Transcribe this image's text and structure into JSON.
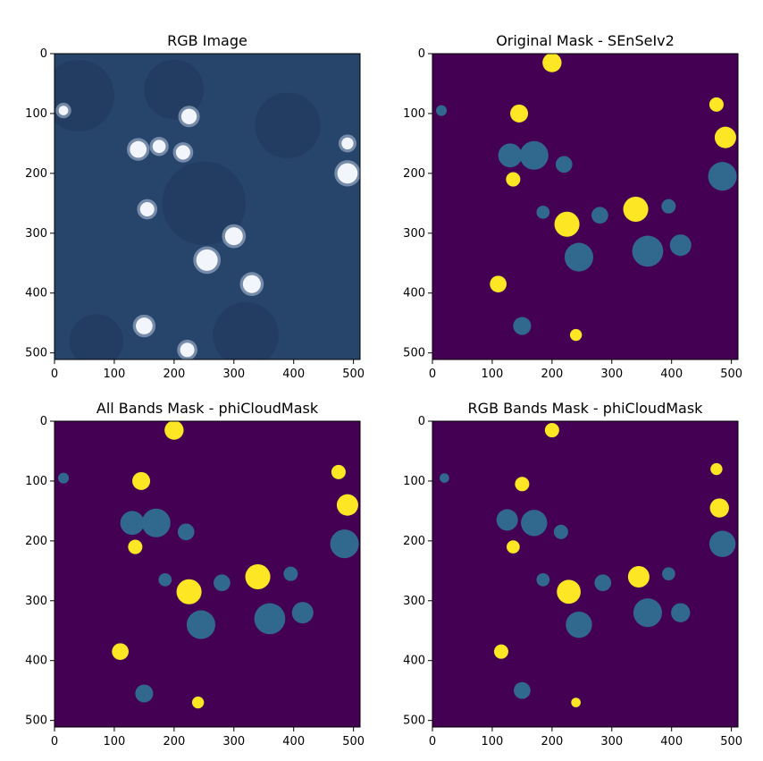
{
  "chart_data": [
    {
      "type": "heatmap",
      "title": "RGB Image",
      "image_kind": "rgb",
      "xlim": [
        0,
        511
      ],
      "ylim": [
        0,
        511
      ],
      "xticks": [
        0,
        100,
        200,
        300,
        400,
        500
      ],
      "yticks": [
        0,
        100,
        200,
        300,
        400,
        500
      ],
      "colors": {
        "background": "#27446a",
        "dark_patch": "#1c3557",
        "cloud": "#f2f5fb",
        "cloud_edge": "#b7c6dc"
      },
      "clouds": [
        [
          140,
          160,
          14
        ],
        [
          175,
          155,
          11
        ],
        [
          225,
          105,
          13
        ],
        [
          215,
          165,
          12
        ],
        [
          255,
          345,
          18
        ],
        [
          300,
          305,
          15
        ],
        [
          330,
          385,
          15
        ],
        [
          15,
          95,
          8
        ],
        [
          490,
          200,
          17
        ],
        [
          490,
          150,
          10
        ],
        [
          155,
          260,
          12
        ],
        [
          150,
          455,
          14
        ],
        [
          222,
          495,
          12
        ]
      ]
    },
    {
      "type": "heatmap",
      "title": "Original Mask - SEnSeIv2",
      "image_kind": "mask",
      "xlim": [
        0,
        511
      ],
      "ylim": [
        0,
        511
      ],
      "xticks": [
        0,
        100,
        200,
        300,
        400,
        500
      ],
      "yticks": [
        0,
        100,
        200,
        300,
        400,
        500
      ],
      "colors": {
        "class_0": "#440154",
        "class_1": "#31688e",
        "class_2": "#fde725"
      },
      "blue_regions": [
        [
          15,
          95,
          9
        ],
        [
          130,
          170,
          20
        ],
        [
          170,
          170,
          24
        ],
        [
          220,
          185,
          14
        ],
        [
          245,
          340,
          24
        ],
        [
          360,
          330,
          26
        ],
        [
          415,
          320,
          18
        ],
        [
          150,
          455,
          15
        ],
        [
          185,
          265,
          11
        ],
        [
          485,
          205,
          24
        ],
        [
          280,
          270,
          14
        ],
        [
          395,
          255,
          12
        ]
      ],
      "yellow_regions": [
        [
          200,
          15,
          16
        ],
        [
          145,
          100,
          15
        ],
        [
          110,
          385,
          14
        ],
        [
          225,
          285,
          21
        ],
        [
          340,
          260,
          21
        ],
        [
          490,
          140,
          18
        ],
        [
          475,
          85,
          12
        ],
        [
          240,
          470,
          10
        ],
        [
          135,
          210,
          12
        ]
      ]
    },
    {
      "type": "heatmap",
      "title": "All Bands Mask - phiCloudMask",
      "image_kind": "mask",
      "xlim": [
        0,
        511
      ],
      "ylim": [
        0,
        511
      ],
      "xticks": [
        0,
        100,
        200,
        300,
        400,
        500
      ],
      "yticks": [
        0,
        100,
        200,
        300,
        400,
        500
      ],
      "colors": {
        "class_0": "#440154",
        "class_1": "#31688e",
        "class_2": "#fde725"
      },
      "blue_regions": [
        [
          15,
          95,
          9
        ],
        [
          130,
          170,
          20
        ],
        [
          170,
          170,
          24
        ],
        [
          220,
          185,
          14
        ],
        [
          245,
          340,
          24
        ],
        [
          360,
          330,
          26
        ],
        [
          415,
          320,
          18
        ],
        [
          150,
          455,
          15
        ],
        [
          185,
          265,
          11
        ],
        [
          485,
          205,
          24
        ],
        [
          280,
          270,
          14
        ],
        [
          395,
          255,
          12
        ]
      ],
      "yellow_regions": [
        [
          200,
          15,
          16
        ],
        [
          145,
          100,
          15
        ],
        [
          110,
          385,
          14
        ],
        [
          225,
          285,
          21
        ],
        [
          340,
          260,
          21
        ],
        [
          490,
          140,
          18
        ],
        [
          475,
          85,
          12
        ],
        [
          240,
          470,
          10
        ],
        [
          135,
          210,
          12
        ]
      ]
    },
    {
      "type": "heatmap",
      "title": "RGB Bands Mask - phiCloudMask",
      "image_kind": "mask",
      "xlim": [
        0,
        511
      ],
      "ylim": [
        0,
        511
      ],
      "xticks": [
        0,
        100,
        200,
        300,
        400,
        500
      ],
      "yticks": [
        0,
        100,
        200,
        300,
        400,
        500
      ],
      "colors": {
        "class_0": "#440154",
        "class_1": "#31688e",
        "class_2": "#fde725"
      },
      "blue_regions": [
        [
          20,
          95,
          8
        ],
        [
          125,
          165,
          18
        ],
        [
          170,
          170,
          22
        ],
        [
          215,
          185,
          12
        ],
        [
          245,
          340,
          22
        ],
        [
          360,
          320,
          24
        ],
        [
          415,
          320,
          16
        ],
        [
          150,
          450,
          14
        ],
        [
          185,
          265,
          11
        ],
        [
          485,
          205,
          22
        ],
        [
          285,
          270,
          14
        ],
        [
          395,
          255,
          11
        ]
      ],
      "yellow_regions": [
        [
          200,
          15,
          12
        ],
        [
          150,
          105,
          12
        ],
        [
          115,
          385,
          12
        ],
        [
          228,
          285,
          20
        ],
        [
          345,
          260,
          18
        ],
        [
          480,
          145,
          16
        ],
        [
          475,
          80,
          10
        ],
        [
          240,
          470,
          8
        ],
        [
          135,
          210,
          11
        ]
      ]
    }
  ]
}
